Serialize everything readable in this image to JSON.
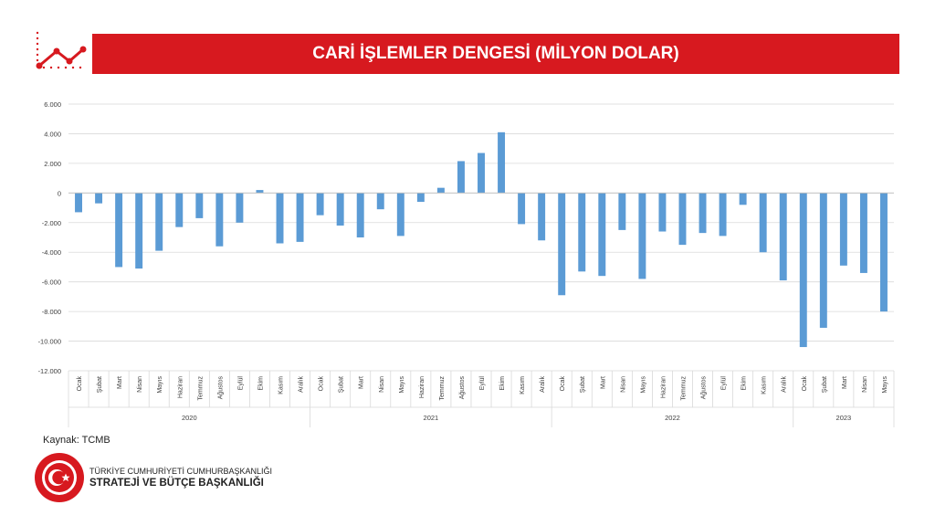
{
  "header": {
    "title": "CARİ İŞLEMLER DENGESİ (MİLYON DOLAR)"
  },
  "source": "Kaynak: TCMB",
  "brand": {
    "line1": "TÜRKİYE CUMHURİYETİ CUMHURBAŞKANLIĞI",
    "line2": "STRATEJİ VE BÜTÇE BAŞKANLIĞI",
    "seal_text": "T.C. CUMHURBAŞKANLIĞI STRATEJİ VE BÜTÇE BAŞKANLIĞI"
  },
  "colors": {
    "accent": "#d7191f",
    "bar": "#5b9bd5",
    "grid": "#d9d9d9"
  },
  "icons": [
    "trend-chart-icon",
    "crescent-star-seal-icon"
  ],
  "chart_data": {
    "type": "bar",
    "ylim": [
      -12000,
      6000
    ],
    "yticks": [
      6000,
      4000,
      2000,
      0,
      -2000,
      -4000,
      -6000,
      -8000,
      -10000,
      -12000
    ],
    "ytick_labels": [
      "6.000",
      "4.000",
      "2.000",
      "0",
      "-2.000",
      "-4.000",
      "-6.000",
      "-8.000",
      "-10.000",
      "-12.000"
    ],
    "grid": true,
    "groups": [
      {
        "label": "2020",
        "categories": [
          "Ocak",
          "Şubat",
          "Mart",
          "Nisan",
          "Mayıs",
          "Haziran",
          "Temmuz",
          "Ağustos",
          "Eylül",
          "Ekim",
          "Kasım",
          "Aralık"
        ]
      },
      {
        "label": "2021",
        "categories": [
          "Ocak",
          "Şubat",
          "Mart",
          "Nisan",
          "Mayıs",
          "Haziran",
          "Temmuz",
          "Ağustos",
          "Eylül",
          "Ekim",
          "Kasım",
          "Aralık"
        ]
      },
      {
        "label": "2022",
        "categories": [
          "Ocak",
          "Şubat",
          "Mart",
          "Nisan",
          "Mayıs",
          "Haziran",
          "Temmuz",
          "Ağustos",
          "Eylül",
          "Ekim",
          "Kasım",
          "Aralık"
        ]
      },
      {
        "label": "2023",
        "categories": [
          "Ocak",
          "Şubat",
          "Mart",
          "Nisan",
          "Mayıs"
        ]
      }
    ],
    "values": [
      -1300,
      -700,
      -5000,
      -5100,
      -3900,
      -2300,
      -1700,
      -3600,
      -2000,
      200,
      -3400,
      -3300,
      -1500,
      -2200,
      -3000,
      -1100,
      -2900,
      -600,
      350,
      2150,
      2700,
      4100,
      -2100,
      -3200,
      -6900,
      -5300,
      -5600,
      -2500,
      -5800,
      -2600,
      -3500,
      -2700,
      -2900,
      -800,
      -4000,
      -5900,
      -10400,
      -9100,
      -4900,
      -5400,
      -8000
    ]
  }
}
